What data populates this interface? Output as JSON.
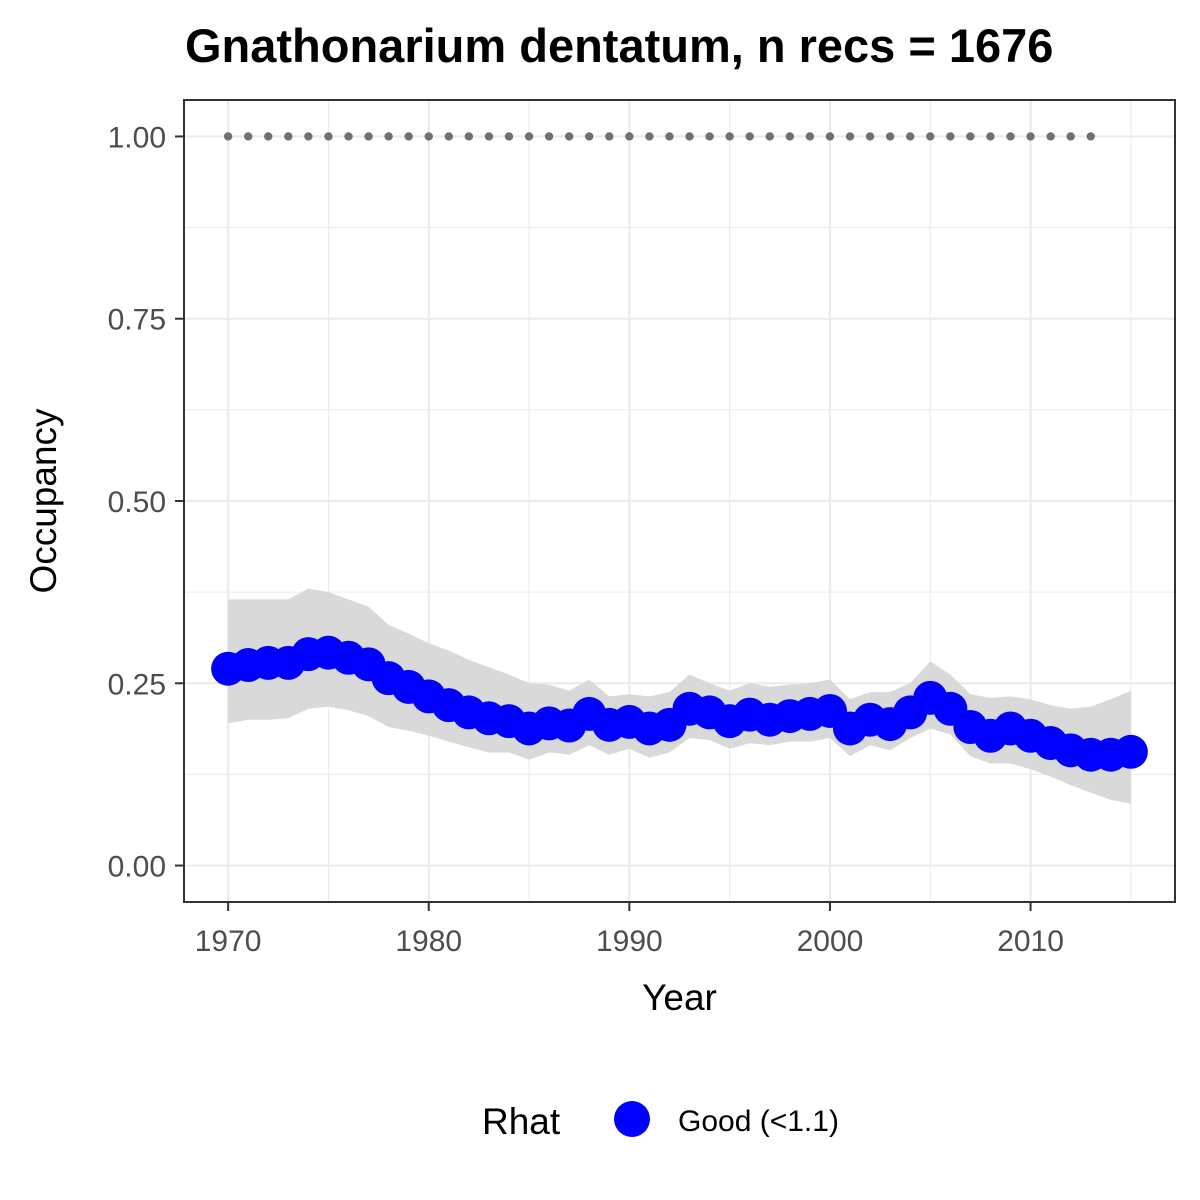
{
  "chart_data": {
    "type": "line",
    "title": "Gnathonarium dentatum, n recs = 1676",
    "xlabel": "Year",
    "ylabel": "Occupancy",
    "xlim": [
      1967.8,
      2017.2
    ],
    "ylim": [
      -0.05,
      1.05
    ],
    "x_ticks": [
      1970,
      1980,
      1990,
      2000,
      2010
    ],
    "x_tick_labels": [
      "1970",
      "1980",
      "1990",
      "2000",
      "2010"
    ],
    "y_ticks": [
      0,
      0.25,
      0.5,
      0.75,
      1
    ],
    "y_tick_labels": [
      "0.00",
      "0.25",
      "0.50",
      "0.75",
      "1.00"
    ],
    "grid": true,
    "legend": {
      "title": "Rhat",
      "position": "bottom",
      "entries": [
        {
          "label": "Good (<1.1)",
          "color": "#0000ff"
        }
      ]
    },
    "colors": {
      "series": "#0000ff",
      "ribbon": "#d9d9d9",
      "reference": "#707070",
      "grid": "#ebebeb",
      "panel_border": "#333333"
    },
    "x": [
      1970,
      1971,
      1972,
      1973,
      1974,
      1975,
      1976,
      1977,
      1978,
      1979,
      1980,
      1981,
      1982,
      1983,
      1984,
      1985,
      1986,
      1987,
      1988,
      1989,
      1990,
      1991,
      1992,
      1993,
      1994,
      1995,
      1996,
      1997,
      1998,
      1999,
      2000,
      2001,
      2002,
      2003,
      2004,
      2005,
      2006,
      2007,
      2008,
      2009,
      2010,
      2011,
      2012,
      2013,
      2014,
      2015
    ],
    "series": [
      {
        "name": "Occupancy",
        "values": [
          0.27,
          0.275,
          0.278,
          0.278,
          0.29,
          0.292,
          0.285,
          0.276,
          0.257,
          0.245,
          0.232,
          0.22,
          0.21,
          0.202,
          0.198,
          0.188,
          0.195,
          0.192,
          0.208,
          0.193,
          0.197,
          0.188,
          0.193,
          0.215,
          0.21,
          0.198,
          0.207,
          0.2,
          0.205,
          0.208,
          0.212,
          0.188,
          0.2,
          0.194,
          0.21,
          0.23,
          0.215,
          0.19,
          0.178,
          0.188,
          0.178,
          0.168,
          0.158,
          0.152,
          0.152,
          0.156
        ],
        "lower": [
          0.195,
          0.2,
          0.2,
          0.202,
          0.215,
          0.218,
          0.213,
          0.205,
          0.19,
          0.185,
          0.178,
          0.17,
          0.162,
          0.155,
          0.155,
          0.145,
          0.155,
          0.152,
          0.165,
          0.152,
          0.16,
          0.148,
          0.155,
          0.175,
          0.172,
          0.16,
          0.168,
          0.165,
          0.17,
          0.17,
          0.175,
          0.15,
          0.165,
          0.158,
          0.175,
          0.188,
          0.18,
          0.15,
          0.14,
          0.14,
          0.132,
          0.122,
          0.11,
          0.1,
          0.09,
          0.085
        ],
        "upper": [
          0.365,
          0.365,
          0.365,
          0.365,
          0.38,
          0.375,
          0.365,
          0.355,
          0.33,
          0.318,
          0.305,
          0.295,
          0.282,
          0.272,
          0.262,
          0.25,
          0.248,
          0.24,
          0.255,
          0.232,
          0.235,
          0.232,
          0.238,
          0.262,
          0.25,
          0.24,
          0.25,
          0.245,
          0.248,
          0.25,
          0.255,
          0.228,
          0.238,
          0.238,
          0.25,
          0.28,
          0.262,
          0.235,
          0.23,
          0.232,
          0.228,
          0.22,
          0.215,
          0.218,
          0.228,
          0.24
        ]
      }
    ],
    "reference": {
      "y": 1,
      "x": [
        1970,
        1971,
        1972,
        1973,
        1974,
        1975,
        1976,
        1977,
        1978,
        1979,
        1980,
        1981,
        1982,
        1983,
        1984,
        1985,
        1986,
        1987,
        1988,
        1989,
        1990,
        1991,
        1992,
        1993,
        1994,
        1995,
        1996,
        1997,
        1998,
        1999,
        2000,
        2001,
        2002,
        2003,
        2004,
        2005,
        2006,
        2007,
        2008,
        2009,
        2010,
        2011,
        2012,
        2013
      ]
    }
  }
}
